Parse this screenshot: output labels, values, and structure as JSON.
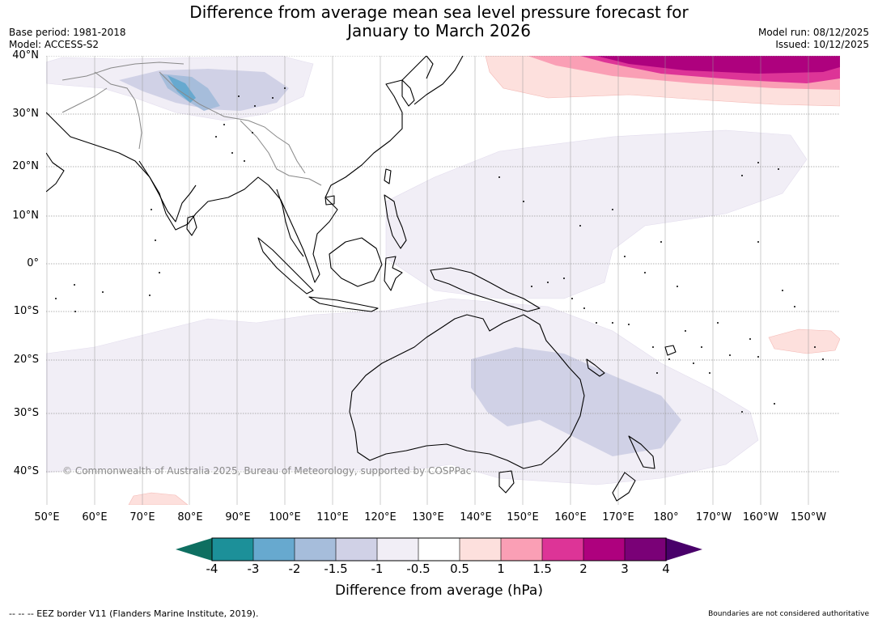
{
  "title_line1": "Difference from average mean sea level pressure forecast for",
  "title_line2": "January to March 2026",
  "base_period": "Base period: 1981-2018",
  "model": "Model: ACCESS-S2",
  "model_run": "Model run: 08/12/2025",
  "issued": "Issued: 10/12/2025",
  "copyright": "© Commonwealth of Australia 2025, Bureau of Meteorology, supported by COSPPac",
  "lat_labels": [
    "40°N",
    "30°N",
    "20°N",
    "10°N",
    "0°",
    "10°S",
    "20°S",
    "30°S",
    "40°S"
  ],
  "lon_labels": [
    "50°E",
    "60°E",
    "70°E",
    "80°E",
    "90°E",
    "100°E",
    "110°E",
    "120°E",
    "130°E",
    "140°E",
    "150°E",
    "160°E",
    "170°E",
    "180°",
    "170°W",
    "160°W",
    "150°W"
  ],
  "colorbar": {
    "ticks": [
      "-4",
      "-3",
      "-2",
      "-1.5",
      "-1",
      "-0.5",
      "0.5",
      "1",
      "1.5",
      "2",
      "3",
      "4"
    ],
    "colors": [
      "#1c9099",
      "#67a9cf",
      "#a6bddb",
      "#d0d1e6",
      "#f1eef6",
      "#ffffff",
      "#fde0dd",
      "#fa9fb5",
      "#dd3497",
      "#ae017e",
      "#7a0177"
    ],
    "under_color": "#0e6f61",
    "over_color": "#49006a",
    "title": "Difference from average (hPa)"
  },
  "colors": {
    "land": "#000000",
    "border": "#888888",
    "grid": "#999999"
  },
  "footer_left": "--  --  -- EEZ border V11 (Flanders Marine Institute, 2019).",
  "footer_right": "Boundaries are not considered authoritative"
}
